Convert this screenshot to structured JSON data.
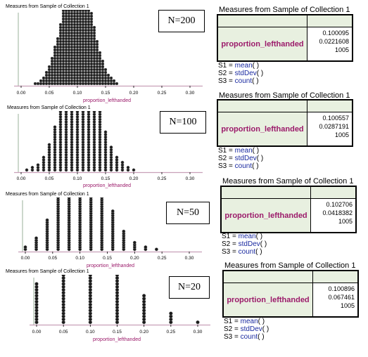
{
  "panels": [
    {
      "n_label": "N=200",
      "plot_title": "Measures from Sample of Collection 1",
      "xlabel": "proportion_lefthanded",
      "ticks": [
        "0.00",
        "0.05",
        "0.10",
        "0.15",
        "0.20",
        "0.25",
        "0.30"
      ],
      "table_title": "Measures from Sample of Collection 1",
      "row_label": "proportion_lefthanded",
      "values": [
        "0.100095",
        "0.0221608",
        "1005"
      ],
      "formulas": [
        {
          "name": "S1 =",
          "fn": "mean",
          "args": "(   )"
        },
        {
          "name": "S2 =",
          "fn": "stdDev",
          "args": "(   )"
        },
        {
          "name": "S3 =",
          "fn": "count",
          "args": "(   )"
        }
      ]
    },
    {
      "n_label": "N=100",
      "plot_title": "Measures from Sample of Collection 1",
      "xlabel": "proportion_lefthanded",
      "ticks": [
        "0.00",
        "0.05",
        "0.10",
        "0.15",
        "0.20",
        "0.25",
        "0.30"
      ],
      "table_title": "Measures from Sample of Collection 1",
      "row_label": "proportion_lefthanded",
      "values": [
        "0.100557",
        "0.0287191",
        "1005"
      ],
      "formulas": [
        {
          "name": "S1 =",
          "fn": "mean",
          "args": "(   )"
        },
        {
          "name": "S2 =",
          "fn": "stdDev",
          "args": "(   )"
        },
        {
          "name": "S3 =",
          "fn": "count",
          "args": "(   )"
        }
      ]
    },
    {
      "n_label": "N=50",
      "plot_title": "Measures from Sample of Collection 1",
      "xlabel": "proportion_lefthanded",
      "ticks": [
        "0.00",
        "0.05",
        "0.10",
        "0.15",
        "0.20",
        "0.25",
        "0.30"
      ],
      "table_title": "Measures from Sample of Collection 1",
      "row_label": "proportion_lefthanded",
      "values": [
        "0.102706",
        "0.0418382",
        "1005"
      ],
      "formulas": [
        {
          "name": "S1 =",
          "fn": "mean",
          "args": "(   )"
        },
        {
          "name": "S2 =",
          "fn": "stdDev",
          "args": "(   )"
        },
        {
          "name": "S3 =",
          "fn": "count",
          "args": "(   )"
        }
      ]
    },
    {
      "n_label": "N=20",
      "plot_title": "Measures from Sample of Collection 1",
      "xlabel": "proportion_lefthanded",
      "ticks": [
        "0.00",
        "0.05",
        "0.10",
        "0.15",
        "0.20",
        "0.25",
        "0.30"
      ],
      "table_title": "Measures from Sample of Collection 1",
      "row_label": "proportion_lefthanded",
      "values": [
        "0.100896",
        "0.067461",
        "1005"
      ],
      "formulas": [
        {
          "name": "S1 =",
          "fn": "mean",
          "args": "(   )"
        },
        {
          "name": "S2 =",
          "fn": "stdDev",
          "args": "(   )"
        },
        {
          "name": "S3 =",
          "fn": "count",
          "args": "(   )"
        }
      ]
    }
  ],
  "chart_data": [
    {
      "type": "dotplot",
      "xlabel": "proportion_lefthanded",
      "xlim": [
        0.0,
        0.3
      ],
      "x": [
        0.025,
        0.03,
        0.035,
        0.04,
        0.045,
        0.05,
        0.055,
        0.06,
        0.065,
        0.07,
        0.075,
        0.08,
        0.085,
        0.09,
        0.095,
        0.1,
        0.105,
        0.11,
        0.115,
        0.12,
        0.125,
        0.13,
        0.135,
        0.14,
        0.145,
        0.15,
        0.155,
        0.16,
        0.165,
        0.17
      ],
      "counts": [
        1,
        1,
        2,
        3,
        5,
        7,
        10,
        14,
        17,
        22,
        27,
        32,
        37,
        44,
        48,
        50,
        47,
        43,
        38,
        32,
        26,
        21,
        16,
        12,
        9,
        6,
        4,
        3,
        2,
        1
      ]
    },
    {
      "type": "dotplot",
      "xlabel": "proportion_lefthanded",
      "xlim": [
        0.0,
        0.3
      ],
      "x": [
        0.01,
        0.02,
        0.03,
        0.04,
        0.05,
        0.06,
        0.07,
        0.08,
        0.09,
        0.1,
        0.11,
        0.12,
        0.13,
        0.14,
        0.15,
        0.16,
        0.17,
        0.18,
        0.19,
        0.2
      ],
      "counts": [
        1,
        2,
        3,
        6,
        11,
        18,
        28,
        38,
        48,
        52,
        50,
        42,
        33,
        24,
        16,
        10,
        6,
        4,
        2,
        1
      ]
    },
    {
      "type": "dotplot",
      "xlabel": "proportion_lefthanded",
      "xlim": [
        0.0,
        0.3
      ],
      "x": [
        0.0,
        0.02,
        0.04,
        0.06,
        0.08,
        0.1,
        0.12,
        0.14,
        0.16,
        0.18,
        0.2,
        0.22,
        0.24
      ],
      "counts": [
        2,
        6,
        14,
        28,
        38,
        44,
        40,
        28,
        18,
        9,
        4,
        2,
        1
      ]
    },
    {
      "type": "dotplot",
      "xlabel": "proportion_lefthanded",
      "xlim": [
        0.0,
        0.3
      ],
      "x": [
        0.0,
        0.05,
        0.1,
        0.15,
        0.2,
        0.25,
        0.3
      ],
      "counts": [
        14,
        30,
        28,
        19,
        10,
        4,
        1
      ]
    }
  ]
}
